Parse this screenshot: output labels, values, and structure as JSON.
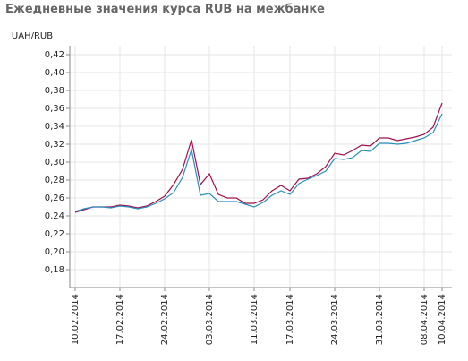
{
  "chart_data": {
    "type": "line",
    "title": "Ежедневные значения курса RUB на межбанке",
    "y_label": "UAH/RUB",
    "categories": [
      "10.02.2014",
      null,
      null,
      null,
      null,
      "17.02.2014",
      null,
      null,
      null,
      null,
      "24.02.2014",
      null,
      null,
      null,
      null,
      "03.03.2014",
      null,
      null,
      null,
      null,
      "11.03.2014",
      null,
      null,
      null,
      "17.03.2014",
      null,
      null,
      null,
      null,
      "24.03.2014",
      null,
      null,
      null,
      null,
      "31.03.2014",
      null,
      null,
      null,
      null,
      "08.04.2014",
      null,
      "10.04.2014"
    ],
    "series": [
      {
        "color": "#a0104e",
        "values": [
          0.244,
          0.247,
          0.25,
          0.25,
          0.25,
          0.252,
          0.251,
          0.249,
          0.251,
          0.256,
          0.262,
          0.275,
          0.292,
          0.325,
          0.275,
          0.287,
          0.264,
          0.26,
          0.26,
          0.254,
          0.254,
          0.258,
          0.268,
          0.274,
          0.268,
          0.281,
          0.282,
          0.287,
          0.295,
          0.31,
          0.308,
          0.313,
          0.319,
          0.318,
          0.327,
          0.327,
          0.324,
          0.326,
          0.328,
          0.331,
          0.339,
          0.366
        ]
      },
      {
        "color": "#2a8fbd",
        "values": [
          0.245,
          0.248,
          0.25,
          0.25,
          0.249,
          0.251,
          0.25,
          0.248,
          0.25,
          0.254,
          0.259,
          0.266,
          0.283,
          0.314,
          0.263,
          0.265,
          0.256,
          0.256,
          0.256,
          0.253,
          0.25,
          0.255,
          0.263,
          0.268,
          0.264,
          0.276,
          0.281,
          0.285,
          0.29,
          0.304,
          0.303,
          0.305,
          0.313,
          0.312,
          0.321,
          0.321,
          0.32,
          0.321,
          0.324,
          0.327,
          0.333,
          0.354
        ]
      }
    ],
    "ylim": [
      0.16,
      0.43
    ],
    "yticks": [
      {
        "value": 0.18,
        "label": "0,18"
      },
      {
        "value": 0.2,
        "label": "0,20"
      },
      {
        "value": 0.22,
        "label": "0,22"
      },
      {
        "value": 0.24,
        "label": "0,24"
      },
      {
        "value": 0.26,
        "label": "0,26"
      },
      {
        "value": 0.28,
        "label": "0,28"
      },
      {
        "value": 0.3,
        "label": "0,30"
      },
      {
        "value": 0.32,
        "label": "0,32"
      },
      {
        "value": 0.34,
        "label": "0,34"
      },
      {
        "value": 0.36,
        "label": "0,36"
      },
      {
        "value": 0.38,
        "label": "0,38"
      },
      {
        "value": 0.4,
        "label": "0,40"
      },
      {
        "value": 0.42,
        "label": "0,42"
      }
    ],
    "grid": true
  }
}
